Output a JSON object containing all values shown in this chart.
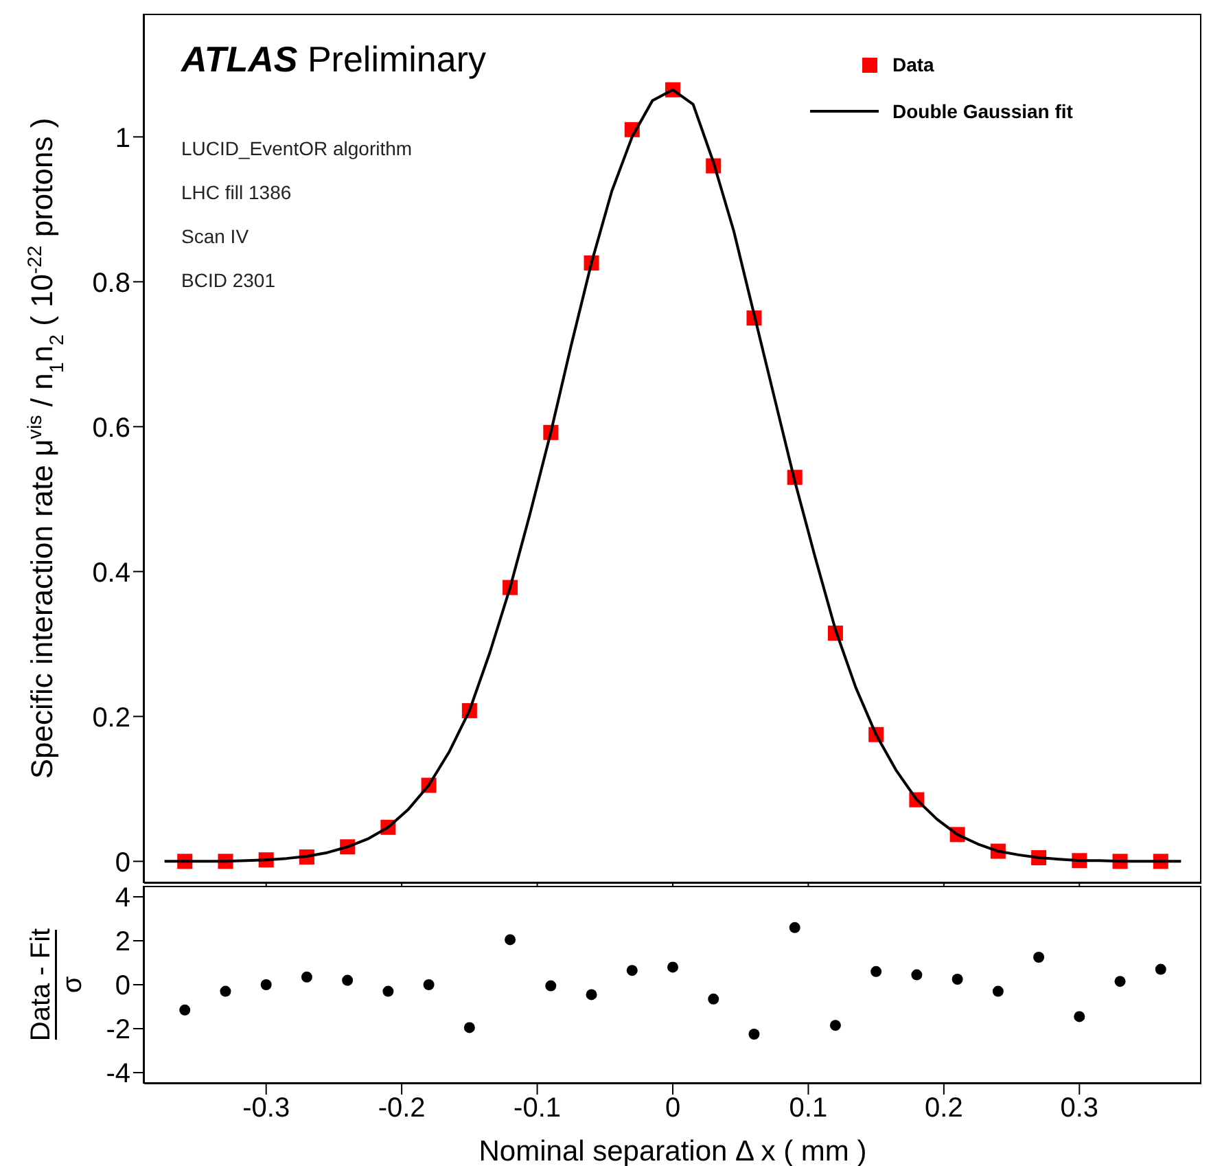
{
  "chart_data": [
    {
      "type": "scatter",
      "ylabel": "Specific interaction rate  μ$^{vis}$ / n$_{1}$n$_{2}$ ( 10$^{-22}$ protons )",
      "xlim": [
        -0.39,
        0.39
      ],
      "xticks": [
        -0.3,
        -0.2,
        -0.1,
        0,
        0.1,
        0.2,
        0.3
      ],
      "ylim": [
        -0.03,
        1.17
      ],
      "yticks": [
        0,
        0.2,
        0.4,
        0.6,
        0.8,
        1
      ],
      "tick_labels": "y",
      "legend": "top right",
      "grid": false,
      "annotations": [
        "ATLAS Preliminary",
        "LUCID_EventOR algorithm",
        "LHC fill 1386",
        "Scan IV",
        "BCID 2301"
      ],
      "series": [
        {
          "name": "Data",
          "marker": "square",
          "color": "#ff0000",
          "x": [
            -0.36,
            -0.33,
            -0.3,
            -0.27,
            -0.24,
            -0.21,
            -0.18,
            -0.15,
            -0.12,
            -0.09,
            -0.06,
            -0.03,
            0,
            0.03,
            0.06,
            0.09,
            0.12,
            0.15,
            0.18,
            0.21,
            0.24,
            0.27,
            0.3,
            0.33,
            0.36
          ],
          "values": [
            0,
            0,
            0.002,
            0.006,
            0.02,
            0.047,
            0.105,
            0.208,
            0.378,
            0.592,
            0.826,
            1.01,
            1.065,
            0.96,
            0.75,
            0.53,
            0.315,
            0.175,
            0.085,
            0.037,
            0.014,
            0.005,
            0.001,
            0,
            0
          ]
        },
        {
          "name": "Double Gaussian fit",
          "type": "line",
          "line_style": "solid",
          "marker": "none",
          "color": "#000000",
          "x": [
            -0.375,
            -0.36,
            -0.345,
            -0.33,
            -0.315,
            -0.3,
            -0.285,
            -0.27,
            -0.255,
            -0.24,
            -0.225,
            -0.21,
            -0.195,
            -0.18,
            -0.165,
            -0.15,
            -0.135,
            -0.12,
            -0.105,
            -0.09,
            -0.075,
            -0.06,
            -0.045,
            -0.03,
            -0.015,
            0,
            0.015,
            0.03,
            0.045,
            0.06,
            0.075,
            0.09,
            0.105,
            0.12,
            0.135,
            0.15,
            0.165,
            0.18,
            0.195,
            0.21,
            0.225,
            0.24,
            0.255,
            0.27,
            0.285,
            0.3,
            0.315,
            0.33,
            0.345,
            0.36,
            0.375
          ],
          "values": [
            0,
            0,
            0,
            0,
            0.001,
            0.002,
            0.004,
            0.007,
            0.012,
            0.02,
            0.031,
            0.047,
            0.072,
            0.105,
            0.151,
            0.208,
            0.288,
            0.378,
            0.482,
            0.592,
            0.712,
            0.826,
            0.925,
            1.0,
            1.05,
            1.065,
            1.045,
            0.965,
            0.87,
            0.755,
            0.64,
            0.525,
            0.42,
            0.32,
            0.24,
            0.175,
            0.125,
            0.085,
            0.058,
            0.037,
            0.024,
            0.014,
            0.009,
            0.005,
            0.003,
            0.001,
            0.001,
            0,
            0,
            0,
            0
          ]
        }
      ]
    },
    {
      "type": "scatter",
      "ylabel": "Data - Fit\nσ",
      "xlabel": "Nominal separation  Δ x ( mm )",
      "xlim": [
        -0.39,
        0.39
      ],
      "xticks": [
        -0.3,
        -0.2,
        -0.1,
        0,
        0.1,
        0.2,
        0.3
      ],
      "ylim": [
        -4.5,
        4.5
      ],
      "yticks": [
        -4,
        -2,
        0,
        2,
        4
      ],
      "grid": false,
      "legend": false,
      "marker": "circle",
      "series": [
        {
          "color": "#000000",
          "x": [
            -0.36,
            -0.33,
            -0.3,
            -0.27,
            -0.24,
            -0.21,
            -0.18,
            -0.15,
            -0.12,
            -0.09,
            -0.06,
            -0.03,
            0,
            0.03,
            0.06,
            0.09,
            0.12,
            0.15,
            0.18,
            0.21,
            0.24,
            0.27,
            0.3,
            0.33,
            0.36
          ],
          "values": [
            -1.15,
            -0.3,
            0,
            0.35,
            0.2,
            -0.3,
            0,
            -1.95,
            2.05,
            -0.05,
            -0.45,
            0.65,
            0.8,
            -0.65,
            -2.25,
            2.6,
            -1.85,
            0.6,
            0.45,
            0.25,
            -0.3,
            1.25,
            -1.45,
            0.15,
            0.7
          ]
        }
      ]
    }
  ]
}
